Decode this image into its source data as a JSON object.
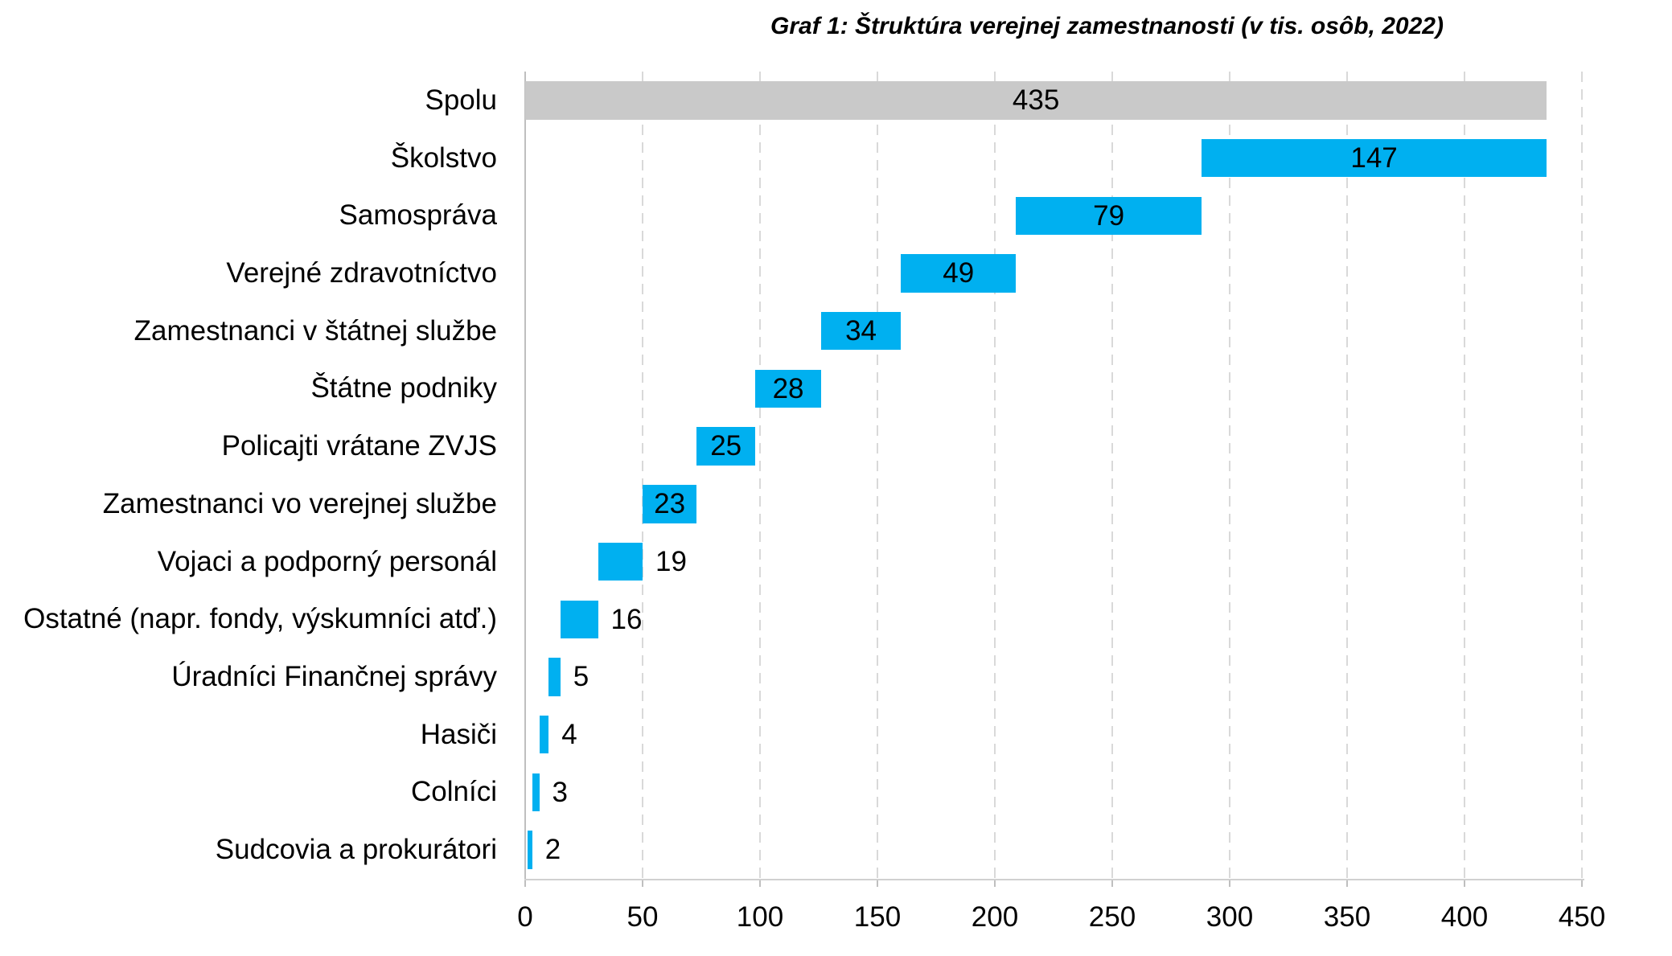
{
  "title": "Graf 1: Štruktúra verejnej zamestnanosti (v tis. osôb, 2022)",
  "chart_data": {
    "type": "bar",
    "subtype": "horizontal-waterfall",
    "title": "Graf 1: Štruktúra verejnej zamestnanosti (v tis. osôb, 2022)",
    "categories": [
      "Spolu",
      "Školstvo",
      "Samospráva",
      "Verejné zdravotníctvo",
      "Zamestnanci v štátnej službe",
      "Štátne podniky",
      "Policajti vrátane ZVJS",
      "Zamestnanci vo verejnej službe",
      "Vojaci a podporný personál",
      "Ostatné (napr. fondy, výskumníci atď.)",
      "Úradníci Finančnej správy",
      "Hasiči",
      "Colníci",
      "Sudcovia a prokurátori"
    ],
    "values": [
      435,
      147,
      79,
      49,
      34,
      28,
      25,
      23,
      19,
      16,
      5,
      4,
      3,
      2
    ],
    "starts": [
      0,
      288,
      209,
      160,
      126,
      98,
      73,
      50,
      31,
      15,
      10,
      6,
      3,
      1
    ],
    "bar_types": [
      "total",
      "segment",
      "segment",
      "segment",
      "segment",
      "segment",
      "segment",
      "segment",
      "segment",
      "segment",
      "segment",
      "segment",
      "segment",
      "segment"
    ],
    "label_placements": [
      "inside",
      "inside",
      "inside",
      "inside",
      "inside",
      "inside",
      "inside",
      "inside",
      "outside",
      "outside",
      "outside",
      "outside",
      "outside",
      "outside"
    ],
    "colors": {
      "total": "#c9c9c9",
      "segment": "#00b0f0",
      "label": "#000000"
    },
    "x_axis": {
      "min": 0,
      "max": 450,
      "tick_step": 50,
      "tick_labels": [
        "0",
        "50",
        "100",
        "150",
        "200",
        "250",
        "300",
        "350",
        "400",
        "450"
      ]
    },
    "grid": "dashed-vertical",
    "legend": "none",
    "xlabel": "",
    "ylabel": ""
  }
}
